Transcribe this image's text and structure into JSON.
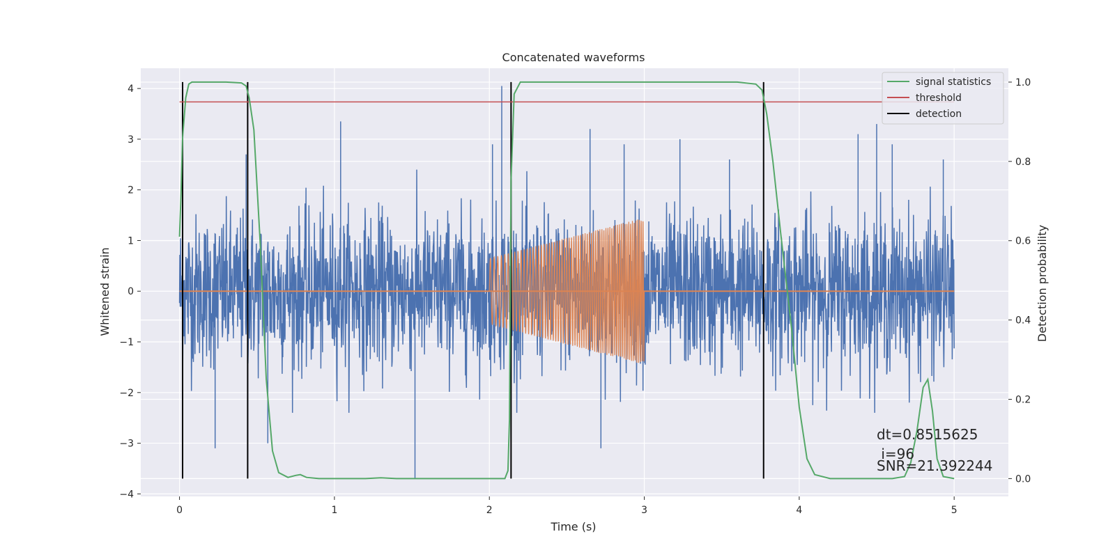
{
  "chart_data": {
    "type": "line",
    "title": "Concatenated waveforms",
    "xlabel": "Time (s)",
    "ylabel": "Whitened strain",
    "y2label": "Detection probability",
    "xlim": [
      -0.25,
      5.35
    ],
    "ylim": [
      -4.05,
      4.4
    ],
    "y2lim": [
      -0.045,
      1.035
    ],
    "xticks": [
      0,
      1,
      2,
      3,
      4,
      5
    ],
    "yticks": [
      -4,
      -3,
      -2,
      -1,
      0,
      1,
      2,
      3,
      4
    ],
    "y2ticks": [
      0.0,
      0.2,
      0.4,
      0.6,
      0.8,
      1.0
    ],
    "grid": true,
    "legend_position": "top-right",
    "colors": {
      "noise": "#4c72b0",
      "injection": "#dd8452",
      "statistics": "#55a868",
      "threshold": "#c44e52",
      "detection": "#000000",
      "background": "#eaeaf2",
      "grid": "#ffffff"
    },
    "series": [
      {
        "name": "",
        "role": "whitened strain (noise)",
        "axis": "left",
        "x_range": [
          0,
          5
        ],
        "typical_envelope": [
          -1.0,
          1.0
        ],
        "peaks": [
          [
            0.02,
            -2.6
          ],
          [
            0.23,
            -3.1
          ],
          [
            0.43,
            2.7
          ],
          [
            0.57,
            -3.0
          ],
          [
            1.04,
            3.35
          ],
          [
            1.52,
            -3.7
          ],
          [
            2.02,
            2.9
          ],
          [
            2.08,
            4.05
          ],
          [
            2.14,
            3.75
          ],
          [
            2.65,
            3.2
          ],
          [
            2.72,
            -3.1
          ],
          [
            2.87,
            2.9
          ],
          [
            3.23,
            3.0
          ],
          [
            3.55,
            2.6
          ],
          [
            4.38,
            3.1
          ],
          [
            4.5,
            3.3
          ],
          [
            4.6,
            2.9
          ],
          [
            4.93,
            2.6
          ]
        ]
      },
      {
        "name": "",
        "role": "injected chirp",
        "axis": "left",
        "x_range": [
          2.0,
          3.0
        ],
        "amplitude_start": 0.65,
        "amplitude_end": 1.45
      },
      {
        "name": "signal statistics",
        "axis": "right",
        "x": [
          0.0,
          0.01,
          0.02,
          0.04,
          0.06,
          0.08,
          0.1,
          0.15,
          0.3,
          0.4,
          0.43,
          0.45,
          0.48,
          0.52,
          0.56,
          0.6,
          0.64,
          0.7,
          0.75,
          0.78,
          0.82,
          0.9,
          1.0,
          1.2,
          1.3,
          1.4,
          1.6,
          1.8,
          2.0,
          2.1,
          2.12,
          2.13,
          2.14,
          2.16,
          2.2,
          2.4,
          3.0,
          3.6,
          3.72,
          3.76,
          3.79,
          3.83,
          3.88,
          3.95,
          4.0,
          4.05,
          4.1,
          4.2,
          4.4,
          4.6,
          4.68,
          4.72,
          4.76,
          4.8,
          4.83,
          4.86,
          4.89,
          4.93,
          5.0
        ],
        "values": [
          0.61,
          0.72,
          0.86,
          0.96,
          0.995,
          1.0,
          1.0,
          1.0,
          1.0,
          0.998,
          0.99,
          0.96,
          0.88,
          0.6,
          0.25,
          0.07,
          0.015,
          0.003,
          0.008,
          0.01,
          0.003,
          0.0,
          0.0,
          0.0,
          0.002,
          0.0,
          0.0,
          0.0,
          0.0,
          0.0,
          0.02,
          0.15,
          0.75,
          0.97,
          1.0,
          1.0,
          1.0,
          1.0,
          0.995,
          0.98,
          0.92,
          0.8,
          0.62,
          0.38,
          0.18,
          0.05,
          0.01,
          0.0,
          0.0,
          0.0,
          0.005,
          0.04,
          0.12,
          0.23,
          0.25,
          0.17,
          0.05,
          0.005,
          0.0
        ]
      },
      {
        "name": "threshold",
        "axis": "right",
        "x": [
          0,
          5
        ],
        "values": [
          0.95,
          0.95
        ]
      },
      {
        "name": "detection",
        "axis": "right",
        "type": "vlines",
        "x": [
          0.02,
          0.44,
          2.14,
          3.77
        ],
        "y_range": [
          0.0,
          1.0
        ]
      }
    ],
    "annotation_lines": [
      "dt=0.8515625",
      " i=96",
      "SNR=21.392244"
    ]
  }
}
